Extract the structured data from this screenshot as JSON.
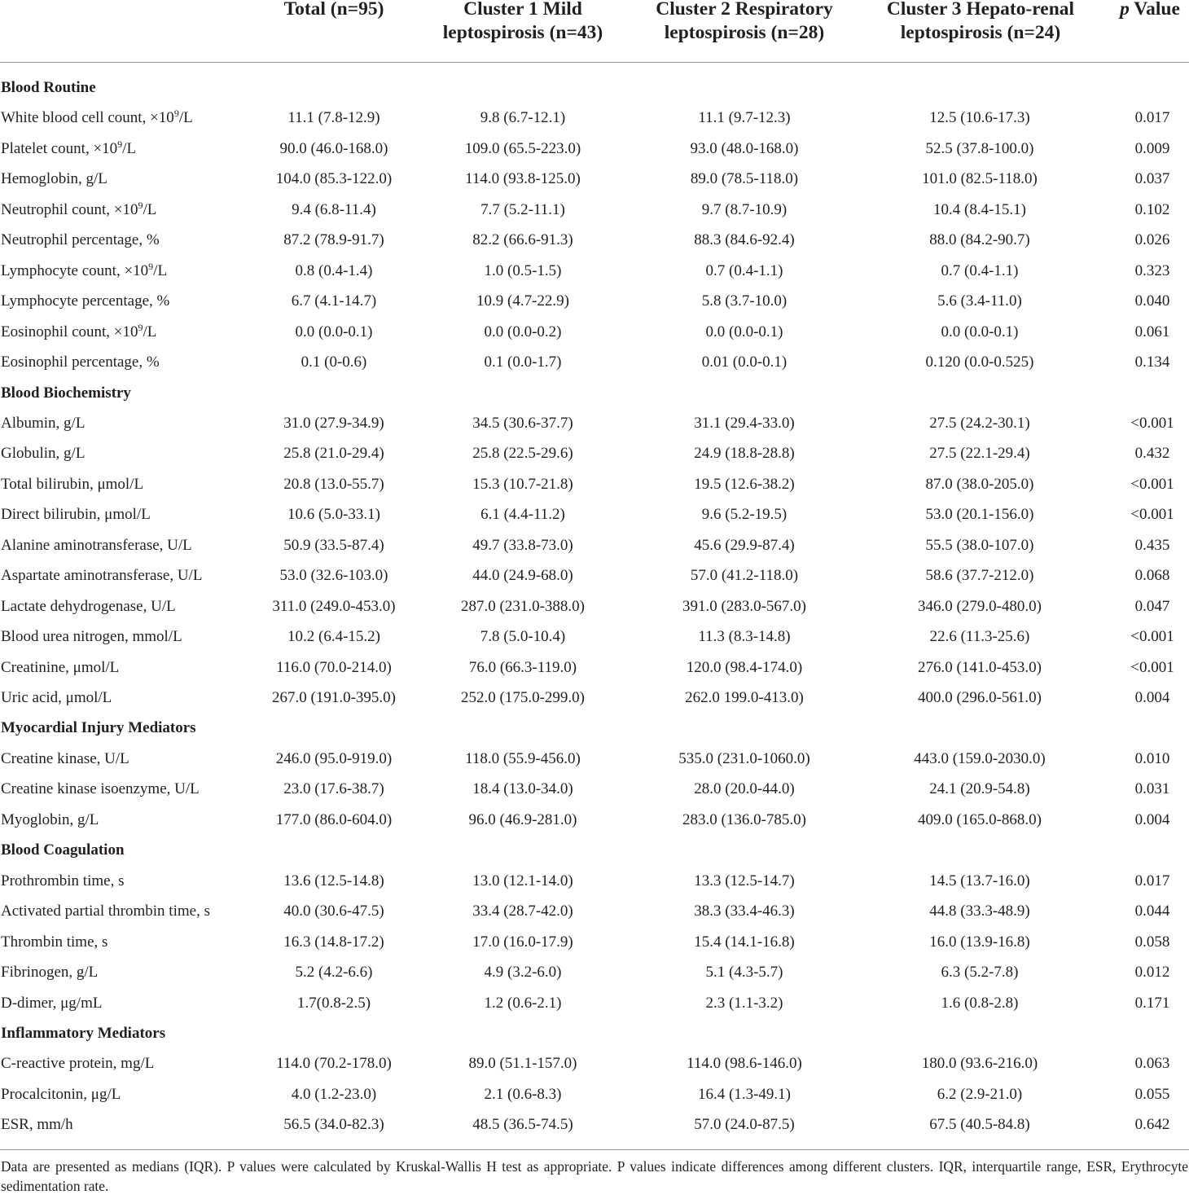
{
  "header": {
    "col_total": "Total (n=95)",
    "col_c1_line1": "Cluster 1 Mild",
    "col_c1_line2": "leptospirosis (n=43)",
    "col_c2_line1": "Cluster 2 Respiratory",
    "col_c2_line2": "leptospirosis (n=28)",
    "col_c3_line1": "Cluster 3 Hepato-renal",
    "col_c3_line2": "leptospirosis (n=24)",
    "col_p_italic": "p",
    "col_p_rest": " Value"
  },
  "rows": [
    {
      "section": "Blood Routine"
    },
    {
      "label": "White blood cell count, ×10",
      "sup": "9",
      "unit": "/L",
      "total": "11.1 (7.8-12.9)",
      "c1": "9.8 (6.7-12.1)",
      "c2": "11.1 (9.7-12.3)",
      "c3": "12.5 (10.6-17.3)",
      "p": "0.017"
    },
    {
      "label": "Platelet count, ×10",
      "sup": "9",
      "unit": "/L",
      "total": "90.0 (46.0-168.0)",
      "c1": "109.0 (65.5-223.0)",
      "c2": "93.0 (48.0-168.0)",
      "c3": "52.5 (37.8-100.0)",
      "p": "0.009"
    },
    {
      "label": "Hemoglobin, g/L",
      "total": "104.0 (85.3-122.0)",
      "c1": "114.0 (93.8-125.0)",
      "c2": "89.0 (78.5-118.0)",
      "c3": "101.0 (82.5-118.0)",
      "p": "0.037"
    },
    {
      "label": "Neutrophil count, ×10",
      "sup": "9",
      "unit": "/L",
      "total": "9.4 (6.8-11.4)",
      "c1": "7.7 (5.2-11.1)",
      "c2": "9.7 (8.7-10.9)",
      "c3": "10.4 (8.4-15.1)",
      "p": "0.102"
    },
    {
      "label": "Neutrophil percentage, %",
      "total": "87.2 (78.9-91.7)",
      "c1": "82.2 (66.6-91.3)",
      "c2": "88.3 (84.6-92.4)",
      "c3": "88.0 (84.2-90.7)",
      "p": "0.026"
    },
    {
      "label": "Lymphocyte count, ×10",
      "sup": "9",
      "unit": "/L",
      "total": "0.8 (0.4-1.4)",
      "c1": "1.0 (0.5-1.5)",
      "c2": "0.7 (0.4-1.1)",
      "c3": "0.7 (0.4-1.1)",
      "p": "0.323"
    },
    {
      "label": "Lymphocyte percentage, %",
      "total": "6.7 (4.1-14.7)",
      "c1": "10.9 (4.7-22.9)",
      "c2": "5.8 (3.7-10.0)",
      "c3": "5.6 (3.4-11.0)",
      "p": "0.040"
    },
    {
      "label": "Eosinophil count, ×10",
      "sup": "9",
      "unit": "/L",
      "total": "0.0 (0.0-0.1)",
      "c1": "0.0 (0.0-0.2)",
      "c2": "0.0 (0.0-0.1)",
      "c3": "0.0 (0.0-0.1)",
      "p": "0.061"
    },
    {
      "label": "Eosinophil percentage, %",
      "total": "0.1 (0-0.6)",
      "c1": "0.1 (0.0-1.7)",
      "c2": "0.01 (0.0-0.1)",
      "c3": "0.120 (0.0-0.525)",
      "p": "0.134"
    },
    {
      "section": "Blood Biochemistry"
    },
    {
      "label": "Albumin, g/L",
      "total": "31.0 (27.9-34.9)",
      "c1": "34.5 (30.6-37.7)",
      "c2": "31.1 (29.4-33.0)",
      "c3": "27.5 (24.2-30.1)",
      "p": "<0.001"
    },
    {
      "label": "Globulin, g/L",
      "total": "25.8 (21.0-29.4)",
      "c1": "25.8 (22.5-29.6)",
      "c2": "24.9 (18.8-28.8)",
      "c3": "27.5 (22.1-29.4)",
      "p": "0.432"
    },
    {
      "label": "Total bilirubin, μmol/L",
      "total": "20.8 (13.0-55.7)",
      "c1": "15.3 (10.7-21.8)",
      "c2": "19.5 (12.6-38.2)",
      "c3": "87.0 (38.0-205.0)",
      "p": "<0.001"
    },
    {
      "label": "Direct bilirubin, μmol/L",
      "total": "10.6 (5.0-33.1)",
      "c1": "6.1 (4.4-11.2)",
      "c2": "9.6 (5.2-19.5)",
      "c3": "53.0 (20.1-156.0)",
      "p": "<0.001"
    },
    {
      "label": "Alanine aminotransferase, U/L",
      "total": "50.9 (33.5-87.4)",
      "c1": "49.7 (33.8-73.0)",
      "c2": "45.6 (29.9-87.4)",
      "c3": "55.5 (38.0-107.0)",
      "p": "0.435"
    },
    {
      "label": "Aspartate aminotransferase, U/L",
      "total": "53.0 (32.6-103.0)",
      "c1": "44.0 (24.9-68.0)",
      "c2": "57.0 (41.2-118.0)",
      "c3": "58.6 (37.7-212.0)",
      "p": "0.068"
    },
    {
      "label": "Lactate dehydrogenase, U/L",
      "total": "311.0 (249.0-453.0)",
      "c1": "287.0 (231.0-388.0)",
      "c2": "391.0 (283.0-567.0)",
      "c3": "346.0 (279.0-480.0)",
      "p": "0.047"
    },
    {
      "label": "Blood urea nitrogen, mmol/L",
      "total": "10.2 (6.4-15.2)",
      "c1": "7.8 (5.0-10.4)",
      "c2": "11.3 (8.3-14.8)",
      "c3": "22.6 (11.3-25.6)",
      "p": "<0.001"
    },
    {
      "label": "Creatinine, μmol/L",
      "total": "116.0 (70.0-214.0)",
      "c1": "76.0 (66.3-119.0)",
      "c2": "120.0 (98.4-174.0)",
      "c3": "276.0 (141.0-453.0)",
      "p": "<0.001"
    },
    {
      "label": "Uric acid, μmol/L",
      "total": "267.0 (191.0-395.0)",
      "c1": "252.0 (175.0-299.0)",
      "c2": "262.0 199.0-413.0)",
      "c3": "400.0 (296.0-561.0)",
      "p": "0.004"
    },
    {
      "section": "Myocardial Injury Mediators"
    },
    {
      "label": "Creatine kinase, U/L",
      "total": "246.0 (95.0-919.0)",
      "c1": "118.0 (55.9-456.0)",
      "c2": "535.0 (231.0-1060.0)",
      "c3": "443.0 (159.0-2030.0)",
      "p": "0.010"
    },
    {
      "label": "Creatine kinase isoenzyme, U/L",
      "total": "23.0 (17.6-38.7)",
      "c1": "18.4 (13.0-34.0)",
      "c2": "28.0 (20.0-44.0)",
      "c3": "24.1 (20.9-54.8)",
      "p": "0.031"
    },
    {
      "label": "Myoglobin, g/L",
      "total": "177.0 (86.0-604.0)",
      "c1": "96.0 (46.9-281.0)",
      "c2": "283.0 (136.0-785.0)",
      "c3": "409.0 (165.0-868.0)",
      "p": "0.004"
    },
    {
      "section": "Blood Coagulation"
    },
    {
      "label": "Prothrombin time, s",
      "total": "13.6 (12.5-14.8)",
      "c1": "13.0 (12.1-14.0)",
      "c2": "13.3 (12.5-14.7)",
      "c3": "14.5 (13.7-16.0)",
      "p": "0.017"
    },
    {
      "label": "Activated partial thrombin time, s",
      "total": "40.0 (30.6-47.5)",
      "c1": "33.4 (28.7-42.0)",
      "c2": "38.3 (33.4-46.3)",
      "c3": "44.8 (33.3-48.9)",
      "p": "0.044"
    },
    {
      "label": "Thrombin time, s",
      "total": "16.3 (14.8-17.2)",
      "c1": "17.0 (16.0-17.9)",
      "c2": "15.4 (14.1-16.8)",
      "c3": "16.0 (13.9-16.8)",
      "p": "0.058"
    },
    {
      "label": "Fibrinogen, g/L",
      "total": "5.2 (4.2-6.6)",
      "c1": "4.9 (3.2-6.0)",
      "c2": "5.1 (4.3-5.7)",
      "c3": "6.3 (5.2-7.8)",
      "p": "0.012"
    },
    {
      "label": "D-dimer, μg/mL",
      "total": "1.7(0.8-2.5)",
      "c1": "1.2 (0.6-2.1)",
      "c2": "2.3 (1.1-3.2)",
      "c3": "1.6 (0.8-2.8)",
      "p": "0.171"
    },
    {
      "section": "Inflammatory Mediators"
    },
    {
      "label": "C-reactive protein, mg/L",
      "total": "114.0 (70.2-178.0)",
      "c1": "89.0 (51.1-157.0)",
      "c2": "114.0 (98.6-146.0)",
      "c3": "180.0 (93.6-216.0)",
      "p": "0.063"
    },
    {
      "label": "Procalcitonin, μg/L",
      "total": "4.0 (1.2-23.0)",
      "c1": "2.1 (0.6-8.3)",
      "c2": "16.4 (1.3-49.1)",
      "c3": "6.2 (2.9-21.0)",
      "p": "0.055"
    },
    {
      "label": "ESR, mm/h",
      "total": "56.5 (34.0-82.3)",
      "c1": "48.5 (36.5-74.5)",
      "c2": "57.0 (24.0-87.5)",
      "c3": "67.5 (40.5-84.8)",
      "p": "0.642"
    }
  ],
  "footnote": "Data are presented as medians (IQR). P values were calculated by Kruskal-Wallis H test as appropriate. P values indicate differences among different clusters. IQR, interquartile range, ESR, Erythrocyte sedimentation rate."
}
